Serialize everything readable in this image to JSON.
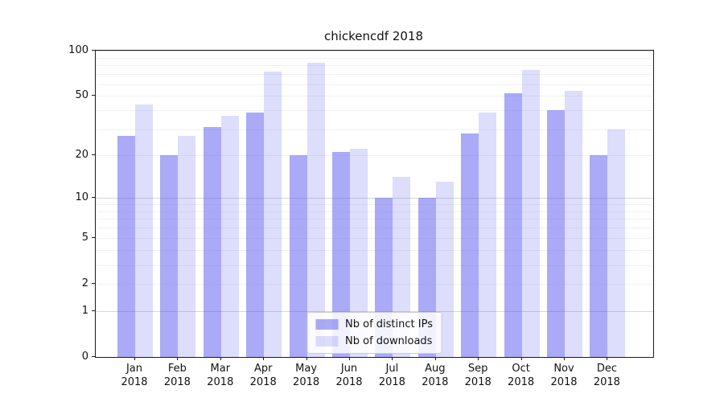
{
  "chart_data": {
    "type": "bar",
    "title": "chickencdf 2018",
    "y_scale": "log1p",
    "ylim": [
      0,
      100
    ],
    "grid": "on",
    "legend_position": "bottom-center-inside",
    "categories": [
      "Jan",
      "Feb",
      "Mar",
      "Apr",
      "May",
      "Jun",
      "Jul",
      "Aug",
      "Sep",
      "Oct",
      "Nov",
      "Dec"
    ],
    "category_year": "2018",
    "series": [
      {
        "name": "Nb of distinct IPs",
        "color": "rgba(85,85,240,0.50)",
        "values": [
          27,
          20,
          31,
          39,
          20,
          21,
          10,
          10,
          28,
          52,
          40,
          20
        ]
      },
      {
        "name": "Nb of downloads",
        "color": "rgba(85,85,240,0.20)",
        "values": [
          44,
          27,
          37,
          73,
          83,
          22,
          14,
          13,
          39,
          75,
          54,
          30
        ]
      }
    ],
    "yticks": [
      0,
      1,
      2,
      5,
      10,
      20,
      50,
      100
    ],
    "gridlines_major": [
      1,
      10,
      100
    ],
    "gridlines_minor": [
      2,
      3,
      4,
      5,
      6,
      7,
      8,
      9,
      20,
      30,
      40,
      50,
      60,
      70,
      80,
      90
    ]
  }
}
